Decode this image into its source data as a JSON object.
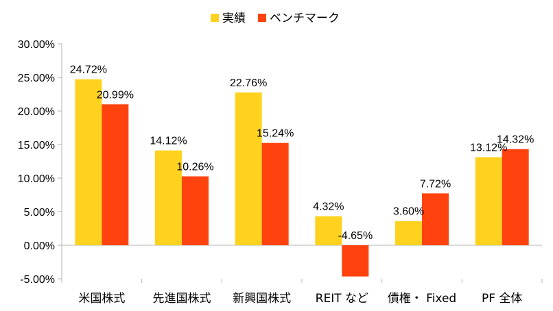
{
  "chart_data": {
    "type": "bar",
    "title": "",
    "xlabel": "",
    "ylabel": "",
    "categories": [
      "米国株式",
      "先進国株式",
      "新興国株式",
      "REIT など",
      "債権・ Fixed",
      "PF 全体"
    ],
    "series": [
      {
        "name": "実績",
        "color": "#FFD21F",
        "values": [
          24.72,
          14.12,
          22.76,
          4.32,
          3.6,
          13.12
        ],
        "labels": [
          "24.72%",
          "14.12%",
          "22.76%",
          "4.32%",
          "3.60%",
          "13.12%"
        ]
      },
      {
        "name": "ベンチマーク",
        "color": "#FF420E",
        "values": [
          20.99,
          10.26,
          15.24,
          -4.65,
          7.72,
          14.32
        ],
        "labels": [
          "20.99%",
          "10.26%",
          "15.24%",
          "-4.65%",
          "7.72%",
          "14.32%"
        ]
      }
    ],
    "ylim": [
      -5,
      30
    ],
    "yticks": [
      30,
      25,
      20,
      15,
      10,
      5,
      0,
      -5
    ],
    "ytick_labels": [
      "30.00%",
      "25.00%",
      "20.00%",
      "15.00%",
      "10.00%",
      "5.00%",
      "0.00%",
      "-5.00%"
    ],
    "grid": false,
    "legend": "top-center"
  }
}
